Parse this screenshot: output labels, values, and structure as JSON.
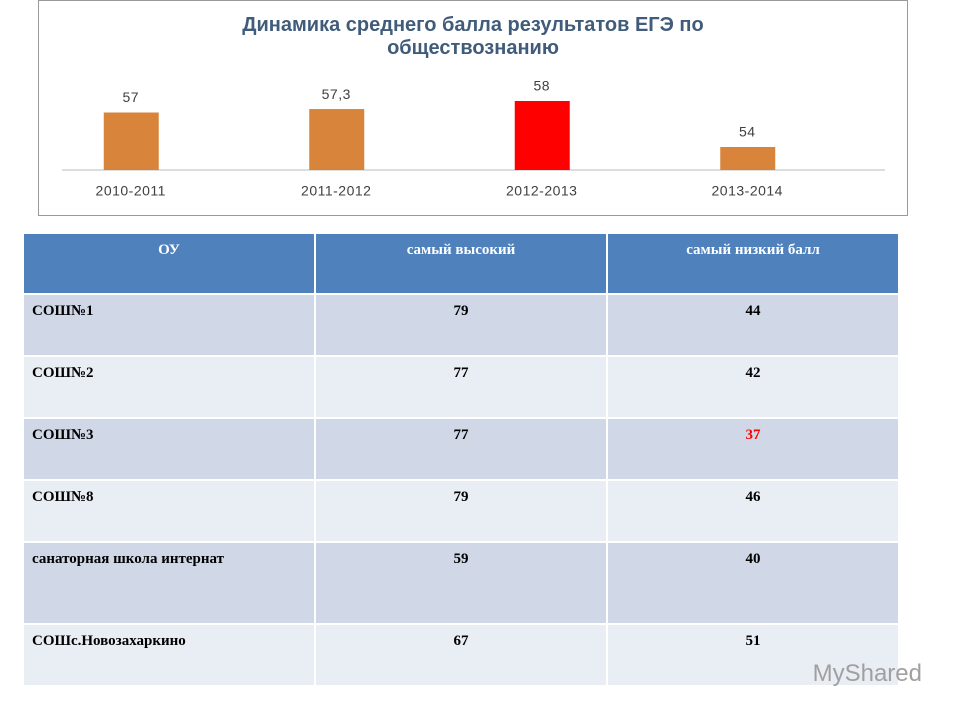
{
  "chart_data": {
    "type": "bar",
    "title": "Динамика среднего балла результатов ЕГЭ по обществознанию",
    "categories": [
      "2010-2011",
      "2011-2012",
      "2012-2013",
      "2013-2014"
    ],
    "values": [
      57,
      57.3,
      58,
      54
    ],
    "value_labels": [
      "57",
      "57,3",
      "58",
      "54"
    ],
    "colors": [
      "#D9843B",
      "#D9843B",
      "#FF0000",
      "#D9843B"
    ],
    "ylim": [
      52,
      60
    ]
  },
  "table": {
    "header": [
      "ОУ",
      "самый высокий",
      "самый низкий балл"
    ],
    "rows": [
      [
        "СОШ№1",
        "79",
        "44"
      ],
      [
        "СОШ№2",
        "77",
        "42"
      ],
      [
        "СОШ№3",
        "77",
        "37"
      ],
      [
        "СОШ№8",
        "79",
        "46"
      ],
      [
        "санаторная школа интернат",
        "59",
        "40"
      ],
      [
        "СОШс.Новозахаркино",
        "67",
        "51"
      ]
    ],
    "highlight": {
      "row": 2,
      "col": 2,
      "color": "#FF0000"
    }
  },
  "watermark": "MyShared"
}
